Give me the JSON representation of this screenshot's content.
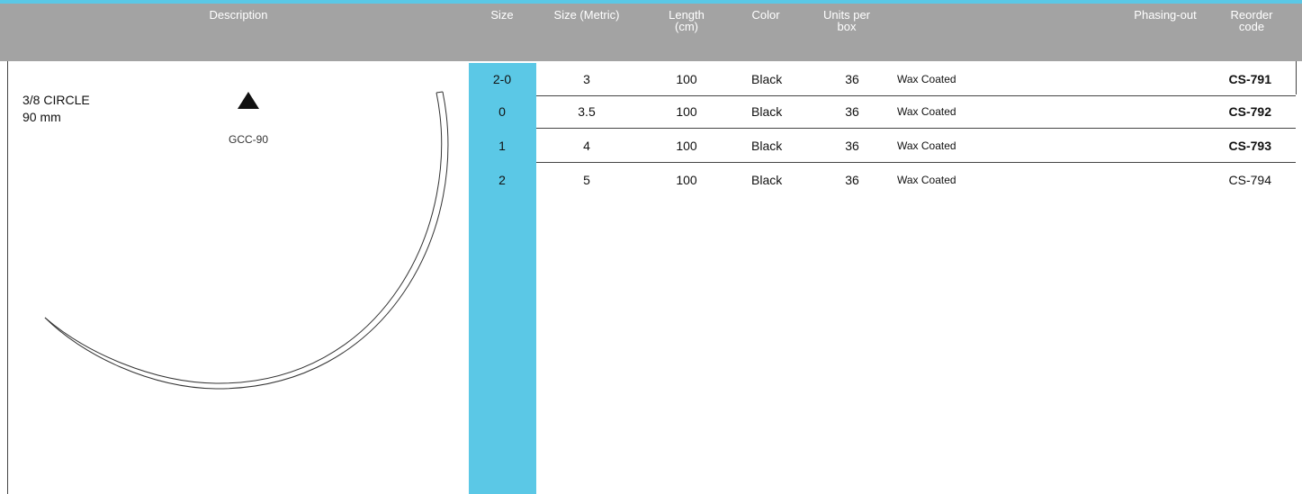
{
  "header": {
    "columns": [
      "Description",
      "Size",
      "Size (Metric)",
      "Length\n(cm)",
      "Color",
      "Units per\nbox",
      "Phasing-out",
      "Reorder\ncode"
    ]
  },
  "description": {
    "shape": "3/8 CIRCLE",
    "size": "90 mm",
    "code": "GCC-90"
  },
  "table": {
    "rows": [
      {
        "size": "2-0",
        "metric": "3",
        "length": "100",
        "color": "Black",
        "units": "36",
        "note": "Wax Coated",
        "reorder": "CS-791",
        "bold_code": true
      },
      {
        "size": "0",
        "metric": "3.5",
        "length": "100",
        "color": "Black",
        "units": "36",
        "note": "Wax Coated",
        "reorder": "CS-792",
        "bold_code": true
      },
      {
        "size": "1",
        "metric": "4",
        "length": "100",
        "color": "Black",
        "units": "36",
        "note": "Wax Coated",
        "reorder": "CS-793",
        "bold_code": true
      },
      {
        "size": "2",
        "metric": "5",
        "length": "100",
        "color": "Black",
        "units": "36",
        "note": "Wax Coated",
        "reorder": "CS-794",
        "bold_code": false
      }
    ]
  }
}
